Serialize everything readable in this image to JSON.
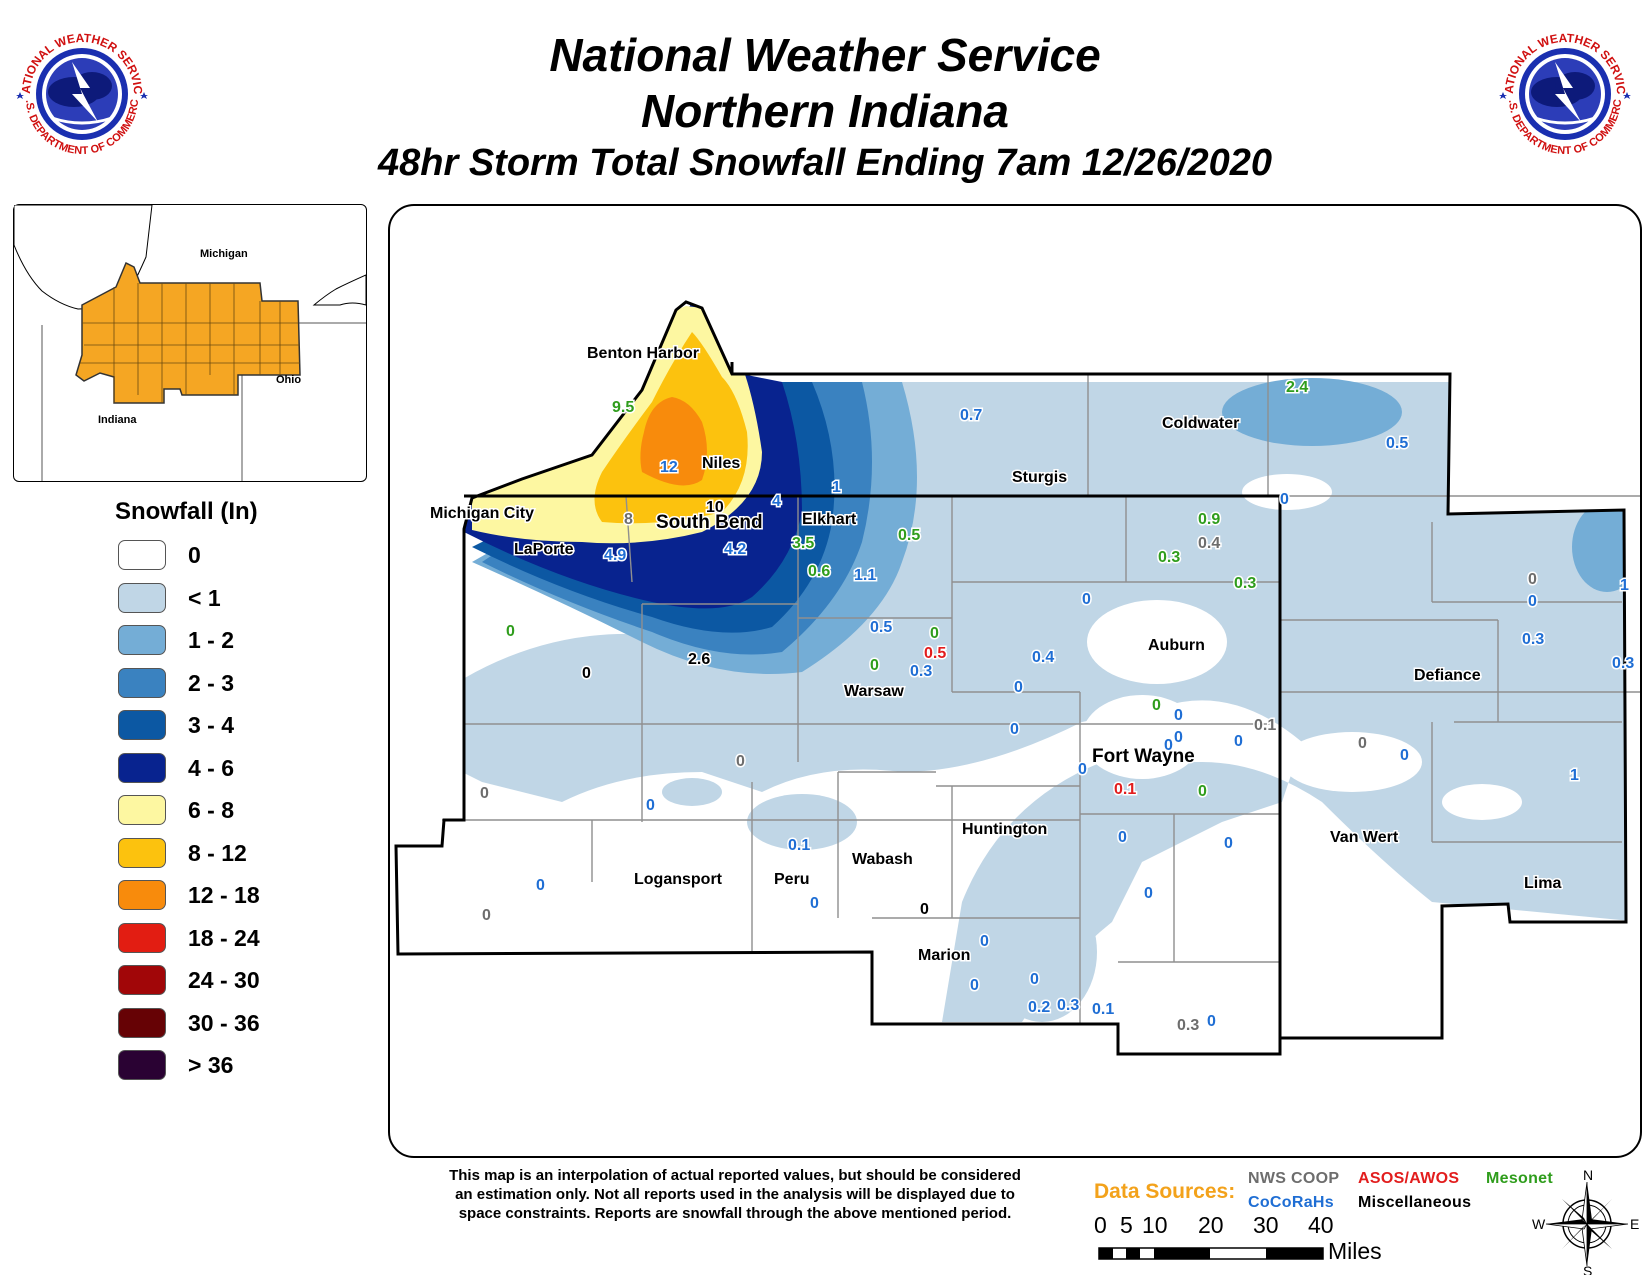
{
  "header": {
    "title_line1": "National Weather Service",
    "title_line2": "Northern Indiana",
    "title_line3": "48hr Storm Total Snowfall Ending 7am 12/26/2020"
  },
  "seal": {
    "top_text": "NATIONAL WEATHER SERVICE",
    "bottom_text": "U.S. DEPARTMENT OF COMMERCE",
    "icon": "nws-seal-icon"
  },
  "inset_map": {
    "labels": {
      "michigan": "Michigan",
      "ohio": "Ohio",
      "indiana": "Indiana"
    },
    "region_color": "#f5a623"
  },
  "legend": {
    "title": "Snowfall (In)",
    "items": [
      {
        "label": "0",
        "color": "#ffffff"
      },
      {
        "label": "< 1",
        "color": "#c0d6e6"
      },
      {
        "label": "1 - 2",
        "color": "#74add6"
      },
      {
        "label": "2 - 3",
        "color": "#3a82c0"
      },
      {
        "label": "3 - 4",
        "color": "#0c58a3"
      },
      {
        "label": "4 - 6",
        "color": "#08238f"
      },
      {
        "label": "6 - 8",
        "color": "#fdf7a1"
      },
      {
        "label": "8 - 12",
        "color": "#fcc20e"
      },
      {
        "label": "12 - 18",
        "color": "#f88b0c"
      },
      {
        "label": "18 - 24",
        "color": "#e21d12"
      },
      {
        "label": "24 - 30",
        "color": "#a10608"
      },
      {
        "label": "30 - 36",
        "color": "#660205"
      },
      {
        "label": "> 36",
        "color": "#2a0233"
      }
    ]
  },
  "cities": [
    {
      "name": "Benton Harbor"
    },
    {
      "name": "Niles"
    },
    {
      "name": "Michigan City"
    },
    {
      "name": "South Bend"
    },
    {
      "name": "LaPorte"
    },
    {
      "name": "Elkhart"
    },
    {
      "name": "Sturgis"
    },
    {
      "name": "Coldwater"
    },
    {
      "name": "Warsaw"
    },
    {
      "name": "Auburn"
    },
    {
      "name": "Defiance"
    },
    {
      "name": "Fort Wayne"
    },
    {
      "name": "Huntington"
    },
    {
      "name": "Wabash"
    },
    {
      "name": "Logansport"
    },
    {
      "name": "Peru"
    },
    {
      "name": "Van Wert"
    },
    {
      "name": "Lima"
    },
    {
      "name": "Marion"
    }
  ],
  "observations": [
    {
      "value": "9.5",
      "source": "Mesonet"
    },
    {
      "value": "12",
      "source": "CoCoRaHs"
    },
    {
      "value": "10",
      "source": "Miscellaneous"
    },
    {
      "value": "8",
      "source": "NWS COOP"
    },
    {
      "value": "4",
      "source": "CoCoRaHs"
    },
    {
      "value": "4.9",
      "source": "CoCoRaHs"
    },
    {
      "value": "4.2",
      "source": "CoCoRaHs"
    },
    {
      "value": "3.5",
      "source": "Mesonet"
    },
    {
      "value": "1",
      "source": "CoCoRaHs"
    },
    {
      "value": "0.6",
      "source": "Mesonet"
    },
    {
      "value": "1.1",
      "source": "CoCoRaHs"
    },
    {
      "value": "0.5",
      "source": "Mesonet"
    },
    {
      "value": "0.7",
      "source": "CoCoRaHs"
    },
    {
      "value": "2.4",
      "source": "Mesonet"
    },
    {
      "value": "0.5",
      "source": "CoCoRaHs"
    },
    {
      "value": "0",
      "source": "CoCoRaHs"
    },
    {
      "value": "0.9",
      "source": "Mesonet"
    },
    {
      "value": "0.4",
      "source": "NWS COOP"
    },
    {
      "value": "0.3",
      "source": "Mesonet"
    },
    {
      "value": "0.3",
      "source": "Mesonet"
    },
    {
      "value": "0",
      "source": "NWS COOP"
    },
    {
      "value": "1",
      "source": "CoCoRaHs"
    },
    {
      "value": "0",
      "source": "CoCoRaHs"
    },
    {
      "value": "0.3",
      "source": "CoCoRaHs"
    },
    {
      "value": "0.3",
      "source": "CoCoRaHs"
    },
    {
      "value": "0",
      "source": "Mesonet"
    },
    {
      "value": "0",
      "source": "Miscellaneous"
    },
    {
      "value": "2.6",
      "source": "Miscellaneous"
    },
    {
      "value": "0.5",
      "source": "CoCoRaHs"
    },
    {
      "value": "0",
      "source": "Mesonet"
    },
    {
      "value": "0.5",
      "source": "ASOS/AWOS"
    },
    {
      "value": "0",
      "source": "Mesonet"
    },
    {
      "value": "0.3",
      "source": "CoCoRaHs"
    },
    {
      "value": "0.4",
      "source": "CoCoRaHs"
    },
    {
      "value": "0",
      "source": "CoCoRaHs"
    },
    {
      "value": "0",
      "source": "CoCoRaHs"
    },
    {
      "value": "0",
      "source": "CoCoRaHs"
    },
    {
      "value": "0",
      "source": "Mesonet"
    },
    {
      "value": "0",
      "source": "CoCoRaHs"
    },
    {
      "value": "0",
      "source": "CoCoRaHs"
    },
    {
      "value": "0",
      "source": "CoCoRaHs"
    },
    {
      "value": "0",
      "source": "CoCoRaHs"
    },
    {
      "value": "0.1",
      "source": "NWS COOP"
    },
    {
      "value": "0",
      "source": "NWS COOP"
    },
    {
      "value": "0",
      "source": "CoCoRaHs"
    },
    {
      "value": "0",
      "source": "CoCoRaHs"
    },
    {
      "value": "0.1",
      "source": "ASOS/AWOS"
    },
    {
      "value": "0",
      "source": "Mesonet"
    },
    {
      "value": "1",
      "source": "CoCoRaHs"
    },
    {
      "value": "0",
      "source": "NWS COOP"
    },
    {
      "value": "0",
      "source": "NWS COOP"
    },
    {
      "value": "0",
      "source": "CoCoRaHs"
    },
    {
      "value": "0",
      "source": "CoCoRaHs"
    },
    {
      "value": "0.1",
      "source": "CoCoRaHs"
    },
    {
      "value": "0",
      "source": "CoCoRaHs"
    },
    {
      "value": "0",
      "source": "CoCoRaHs"
    },
    {
      "value": "0",
      "source": "NWS COOP"
    },
    {
      "value": "0",
      "source": "CoCoRaHs"
    },
    {
      "value": "0",
      "source": "CoCoRaHs"
    },
    {
      "value": "0",
      "source": "Miscellaneous"
    },
    {
      "value": "0",
      "source": "CoCoRaHs"
    },
    {
      "value": "0",
      "source": "CoCoRaHs"
    },
    {
      "value": "0",
      "source": "CoCoRaHs"
    },
    {
      "value": "0.2",
      "source": "CoCoRaHs"
    },
    {
      "value": "0.3",
      "source": "CoCoRaHs"
    },
    {
      "value": "0.1",
      "source": "CoCoRaHs"
    },
    {
      "value": "0.3",
      "source": "NWS COOP"
    },
    {
      "value": "0",
      "source": "CoCoRaHs"
    },
    {
      "value": "0",
      "source": "CoCoRaHs"
    }
  ],
  "source_colors": {
    "NWS COOP": "#6d6d6d",
    "CoCoRaHs": "#1f6ed4",
    "ASOS/AWOS": "#e21d1d",
    "Mesonet": "#2f9d1c",
    "Miscellaneous": "#000000"
  },
  "disclaimer": {
    "line1": "This map is an interpolation of actual reported values, but should be considered",
    "line2": "an estimation only. Not all reports used in the analysis will be displayed due to",
    "line3": "space constraints. Reports are snowfall through the above mentioned period."
  },
  "data_sources": {
    "title": "Data Sources:",
    "items": [
      "NWS COOP",
      "CoCoRaHs",
      "ASOS/AWOS",
      "Miscellaneous",
      "Mesonet"
    ]
  },
  "scale_bar": {
    "ticks": [
      "0",
      "5",
      "10",
      "20",
      "30",
      "40"
    ],
    "unit": "Miles"
  },
  "compass": {
    "n": "N",
    "s": "S",
    "e": "E",
    "w": "W",
    "icon": "compass-rose-icon"
  }
}
